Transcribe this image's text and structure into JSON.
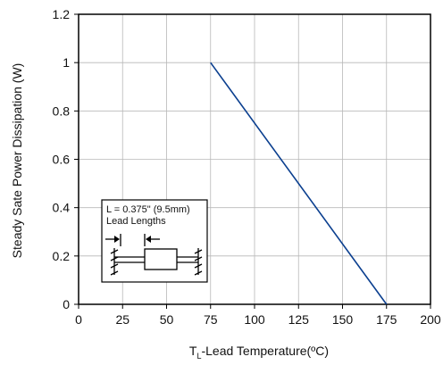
{
  "chart_data": {
    "type": "line",
    "title": "",
    "xlabel": {
      "main": "T",
      "subscript": "L",
      "rest": "-Lead Temperature(ºC)"
    },
    "ylabel": "Steady Sate Power Dissipation (W)",
    "xlim": [
      0,
      200
    ],
    "ylim": [
      0,
      1.2
    ],
    "x_ticks": [
      0,
      25,
      50,
      75,
      100,
      125,
      150,
      175,
      200
    ],
    "x_tick_labels": [
      "0",
      "25",
      "50",
      "75",
      "100",
      "125",
      "150",
      "175",
      "200"
    ],
    "y_ticks": [
      0,
      0.2,
      0.4,
      0.6,
      0.8,
      1.0,
      1.2
    ],
    "y_tick_labels": [
      "0",
      "0.2",
      "0.4",
      "0.6",
      "0.8",
      "1",
      "1.2"
    ],
    "grid": true,
    "series": [
      {
        "color": "#0b3f8f",
        "x": [
          75,
          175
        ],
        "y": [
          1.0,
          0.0
        ]
      }
    ],
    "annotation": {
      "line1": "L = 0.375\" (9.5mm)",
      "line2": "Lead Lengths"
    }
  }
}
